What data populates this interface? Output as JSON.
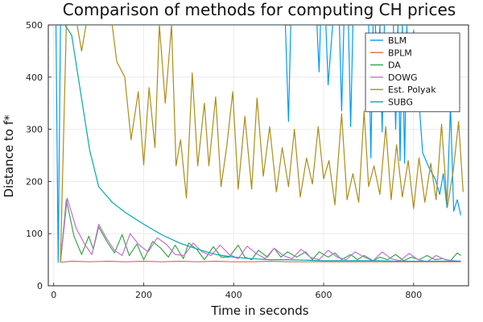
{
  "chart_data": {
    "type": "line",
    "title": "Comparison of methods for computing CH prices",
    "xlabel": "Time in seconds",
    "ylabel": "Distance to f*",
    "xlim": [
      -12,
      922
    ],
    "ylim": [
      0,
      500
    ],
    "xticks": [
      0,
      200,
      400,
      600,
      800
    ],
    "yticks": [
      0,
      100,
      200,
      300,
      400,
      500
    ],
    "grid": true,
    "legend_position": "top-right",
    "series": [
      {
        "name": "BLM",
        "color": "#009AFA",
        "x": [
          0,
          5,
          10,
          15,
          515,
          522,
          527,
          530,
          585,
          590,
          593,
          600,
          605,
          610,
          620,
          625,
          630,
          635,
          640,
          645,
          650,
          655,
          660,
          665,
          670,
          675,
          680,
          685,
          690,
          695,
          700,
          705,
          710,
          715,
          720,
          725,
          730,
          735,
          740,
          745,
          750,
          755,
          760,
          765,
          770,
          775,
          780,
          785,
          790,
          800,
          810,
          820,
          835,
          848,
          858,
          866,
          874,
          882,
          889,
          897,
          905
        ],
        "y": [
          500,
          500,
          45,
          500,
          500,
          315,
          500,
          500,
          500,
          410,
          500,
          500,
          500,
          385,
          500,
          500,
          500,
          500,
          335,
          500,
          500,
          500,
          305,
          500,
          500,
          500,
          500,
          500,
          500,
          500,
          500,
          245,
          500,
          500,
          385,
          500,
          295,
          500,
          500,
          500,
          500,
          500,
          300,
          500,
          240,
          500,
          235,
          500,
          350,
          490,
          380,
          255,
          225,
          205,
          175,
          215,
          150,
          345,
          143,
          165,
          135
        ]
      },
      {
        "name": "BPLM",
        "color": "#E26F46",
        "x": [
          15,
          40,
          80,
          120,
          160,
          200,
          240,
          280,
          320,
          360,
          400,
          440,
          480,
          520,
          560,
          600,
          640,
          680,
          720,
          760,
          800,
          840,
          880,
          905
        ],
        "y": [
          45,
          47,
          46,
          47,
          46,
          47,
          46,
          47,
          46,
          47,
          46,
          46,
          47,
          46,
          46,
          46,
          46,
          46,
          46,
          46,
          46,
          46,
          46,
          46
        ]
      },
      {
        "name": "DA",
        "color": "#3DA44D",
        "x": [
          15,
          28,
          45,
          62,
          78,
          88,
          100,
          118,
          135,
          152,
          168,
          185,
          200,
          220,
          238,
          255,
          270,
          288,
          300,
          318,
          335,
          355,
          372,
          390,
          410,
          425,
          440,
          455,
          475,
          490,
          505,
          520,
          540,
          560,
          575,
          590,
          610,
          625,
          640,
          660,
          675,
          690,
          710,
          725,
          742,
          760,
          778,
          795,
          812,
          830,
          848,
          865,
          882,
          897,
          905
        ],
        "y": [
          45,
          165,
          95,
          60,
          95,
          70,
          113,
          85,
          63,
          98,
          58,
          80,
          50,
          85,
          72,
          55,
          78,
          52,
          82,
          70,
          50,
          75,
          55,
          55,
          78,
          55,
          50,
          68,
          55,
          72,
          55,
          65,
          55,
          65,
          50,
          65,
          55,
          63,
          50,
          60,
          50,
          58,
          48,
          55,
          50,
          60,
          48,
          55,
          50,
          58,
          50,
          52,
          48,
          63,
          58
        ]
      },
      {
        "name": "DOWG",
        "color": "#C271D2",
        "x": [
          15,
          30,
          50,
          70,
          85,
          100,
          118,
          135,
          152,
          170,
          190,
          210,
          230,
          250,
          270,
          290,
          310,
          330,
          350,
          370,
          390,
          410,
          430,
          450,
          470,
          490,
          510,
          530,
          550,
          570,
          590,
          610,
          630,
          650,
          670,
          690,
          710,
          730,
          750,
          770,
          790,
          810,
          830,
          850,
          870,
          890,
          905
        ],
        "y": [
          45,
          168,
          110,
          78,
          60,
          118,
          90,
          68,
          58,
          100,
          78,
          65,
          92,
          80,
          60,
          58,
          82,
          65,
          58,
          78,
          60,
          52,
          76,
          62,
          52,
          72,
          58,
          52,
          70,
          55,
          50,
          68,
          55,
          50,
          65,
          55,
          48,
          65,
          52,
          48,
          62,
          50,
          46,
          58,
          50,
          48,
          47
        ]
      },
      {
        "name": "Est. Polyak",
        "color": "#AC8D18",
        "x": [
          15,
          28,
          42,
          52,
          62,
          72,
          82,
          92,
          100,
          108,
          118,
          130,
          140,
          158,
          172,
          188,
          200,
          212,
          225,
          235,
          248,
          262,
          272,
          282,
          295,
          308,
          320,
          335,
          345,
          360,
          372,
          385,
          398,
          410,
          425,
          440,
          452,
          466,
          480,
          495,
          508,
          522,
          535,
          548,
          562,
          575,
          588,
          600,
          612,
          625,
          640,
          652,
          665,
          678,
          690,
          700,
          712,
          725,
          738,
          750,
          762,
          775,
          788,
          800,
          812,
          825,
          838,
          850,
          862,
          875,
          888,
          900,
          910
        ],
        "y": [
          45,
          500,
          500,
          500,
          450,
          500,
          500,
          500,
          500,
          500,
          500,
          500,
          430,
          400,
          280,
          372,
          232,
          380,
          265,
          500,
          350,
          500,
          230,
          280,
          168,
          408,
          230,
          350,
          230,
          362,
          190,
          270,
          372,
          185,
          325,
          185,
          360,
          210,
          305,
          180,
          265,
          190,
          300,
          170,
          245,
          195,
          305,
          205,
          240,
          155,
          330,
          165,
          215,
          160,
          335,
          190,
          230,
          175,
          305,
          165,
          270,
          170,
          240,
          148,
          245,
          160,
          235,
          165,
          310,
          150,
          220,
          315,
          180
        ]
      },
      {
        "name": "SUBG",
        "color": "#00A9AD",
        "x": [
          15,
          25,
          40,
          60,
          80,
          100,
          130,
          160,
          200,
          240,
          280,
          320,
          360,
          400,
          440,
          480,
          520,
          560,
          600,
          640,
          680,
          720,
          760,
          800,
          840,
          880,
          905
        ],
        "y": [
          500,
          500,
          480,
          370,
          260,
          190,
          160,
          140,
          118,
          98,
          82,
          70,
          60,
          55,
          52,
          50,
          50,
          49,
          48,
          48,
          48,
          48,
          47,
          47,
          47,
          47,
          47
        ]
      }
    ]
  }
}
